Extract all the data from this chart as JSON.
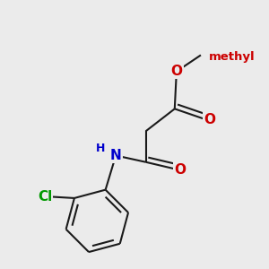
{
  "background_color": "#ebebeb",
  "atom_colors": {
    "N": "#0000cc",
    "O": "#cc0000",
    "Cl": "#009900"
  },
  "bond_color": "#1a1a1a",
  "bond_width": 1.5,
  "dbo": 0.018,
  "font_size": 11,
  "atoms": {
    "methyl_label": "methyl",
    "O_label": "O",
    "N_label": "N",
    "H_label": "H",
    "Cl_label": "Cl"
  }
}
